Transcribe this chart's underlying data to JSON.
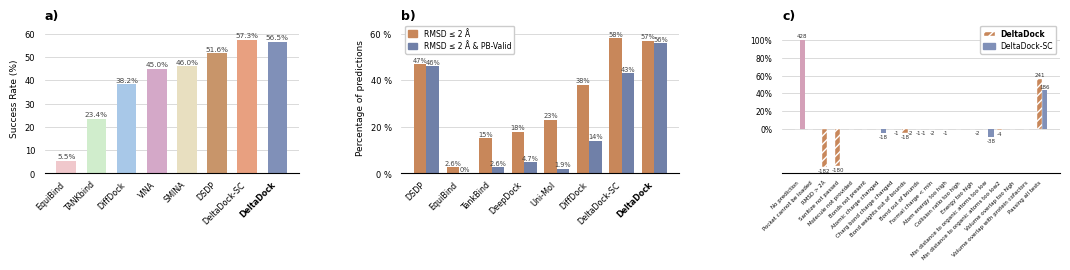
{
  "panel_a": {
    "categories": [
      "EquiBind",
      "TANKbind",
      "DiffDock",
      "VINA",
      "SMINA",
      "DSDP",
      "DeltaDock-SC",
      "DeltaDock"
    ],
    "values": [
      5.5,
      23.4,
      38.2,
      45.0,
      46.0,
      51.6,
      57.3,
      56.5
    ],
    "colors": [
      "#f0c8cc",
      "#d0edcc",
      "#a8c8e8",
      "#d4a8c8",
      "#e8dfc0",
      "#c8956a",
      "#e8a080",
      "#8090b8"
    ],
    "ylabel": "Success Rate (%)",
    "title": "a)",
    "ylim": [
      0,
      65
    ],
    "yticks": [
      0,
      10,
      20,
      30,
      40,
      50,
      60
    ]
  },
  "panel_b": {
    "categories": [
      "DSDP",
      "EquiBind",
      "TankBind",
      "DeepDock",
      "Uni-Mol",
      "DiffDock",
      "DeltaDock-SC",
      "DeltaDock"
    ],
    "rmsd2": [
      47,
      2.6,
      15,
      18,
      23,
      38,
      58,
      57
    ],
    "rmsd2_pb": [
      46,
      0,
      2.6,
      4.7,
      1.9,
      14,
      43,
      56
    ],
    "color_rmsd2": "#c8875a",
    "color_rmsd2_pb": "#7080a8",
    "ylabel": "Percentage of predictions",
    "title": "b)",
    "ylim": [
      0,
      65
    ],
    "ytick_labels": [
      "0 %",
      "20 %",
      "40 %",
      "60 %"
    ],
    "ytick_vals": [
      0,
      20,
      40,
      60
    ],
    "legend_rmsd2": "RMSD ≤ 2 Å",
    "legend_rmsd2_pb": "RMSD ≤ 2 Å & PB-Valid"
  },
  "panel_c": {
    "categories": [
      "No prediction",
      "Pocket cannot be loaded",
      "RMSD > 2Å",
      "Sanitize not passed",
      "Molecule not provided",
      "Bonds not present",
      "Atomic charge changed",
      "Charg bond charge changed",
      "Bond weights out of bounds",
      "Bond out of bounds",
      "Formal charge < min",
      "Atom energy too high",
      "Collision ratio too high",
      "Energy too high",
      "Min distance to organic atoms too low",
      "Min distance to organic atoms too low2",
      "Volume overlap too high",
      "Volume overlap with protein cofactors",
      "Passing all tests"
    ],
    "deltadock_values": [
      0,
      0,
      -182,
      -180,
      0,
      0,
      0,
      0,
      -18,
      -1,
      -2,
      -1,
      0,
      0,
      0,
      -4,
      0,
      0,
      241
    ],
    "deltadocksc_values": [
      428,
      0,
      0,
      0,
      0,
      0,
      -18,
      -1,
      -2,
      -1,
      0,
      0,
      0,
      -2,
      -38,
      0,
      0,
      0,
      186
    ],
    "total": 428,
    "ylabel": "",
    "title": "c)",
    "color_deltadock": "#c8875a",
    "color_deltadocksc": "#8090b8",
    "color_nopred": "#d4a0b8",
    "hatch_deltadock": "////",
    "legend_deltadock": "DeltaDock",
    "legend_deltadocksc": "DeltaDock-SC"
  }
}
